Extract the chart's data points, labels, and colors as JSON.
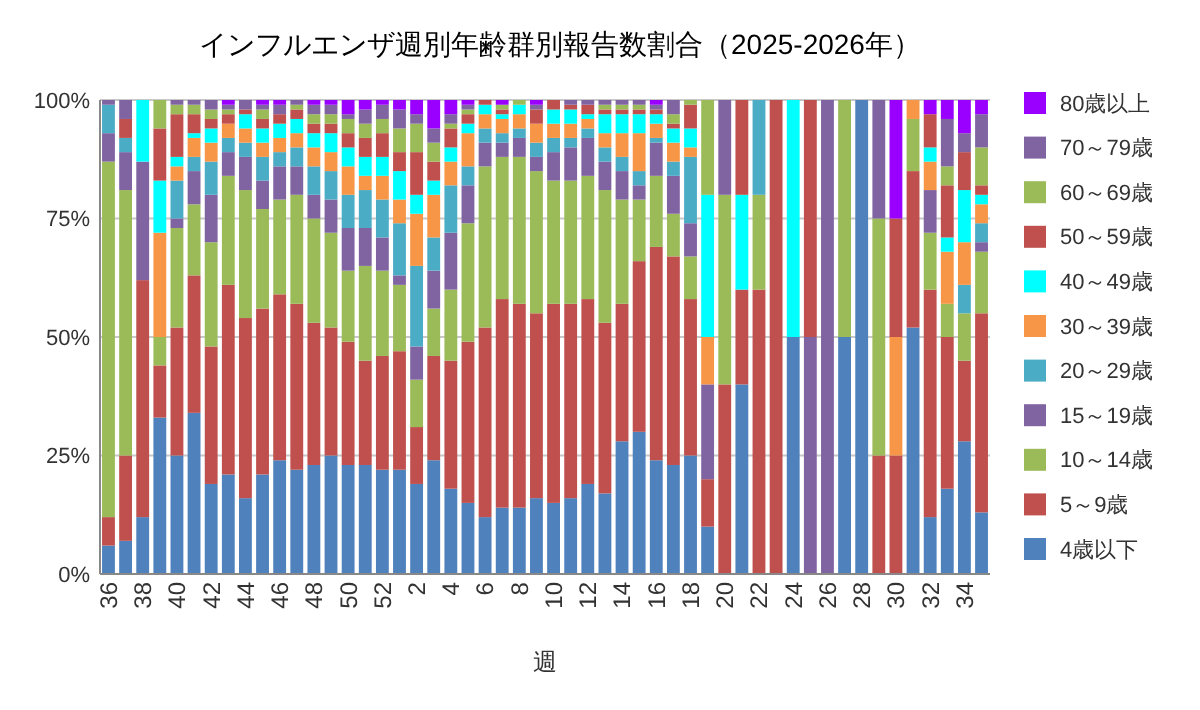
{
  "chart_data": {
    "type": "bar",
    "stacked": true,
    "title": "インフルエンザ週別年齢群別報告数割合（2025-2026年）",
    "xlabel": "週",
    "categories": [
      "36",
      null,
      "38",
      null,
      "40",
      null,
      "42",
      null,
      "44",
      null,
      "46",
      null,
      "48",
      null,
      "50",
      null,
      "52",
      null,
      "2",
      null,
      "4",
      null,
      "6",
      null,
      "8",
      null,
      "10",
      null,
      "12",
      null,
      "14",
      null,
      "16",
      null,
      "18",
      null,
      "20",
      null,
      "22",
      null,
      "24",
      null,
      "26",
      null,
      "28",
      null,
      "30",
      null,
      "32",
      null,
      "34",
      null
    ],
    "ylim": [
      0,
      100
    ],
    "yticks": [
      {
        "value": 0,
        "label": "0%"
      },
      {
        "value": 25,
        "label": "25%"
      },
      {
        "value": 50,
        "label": "50%"
      },
      {
        "value": 75,
        "label": "75%"
      },
      {
        "value": 100,
        "label": "100%"
      }
    ],
    "grid": "y",
    "legend": "right",
    "series": [
      {
        "name": "4歳以下",
        "color": "#4f81bd",
        "values": [
          6,
          7,
          12,
          33,
          25,
          34,
          19,
          21,
          16,
          21,
          24,
          22,
          23,
          25,
          23,
          23,
          22,
          22,
          19,
          24,
          18,
          15,
          12,
          14,
          14,
          16,
          15,
          16,
          19,
          17,
          28,
          30,
          24,
          23,
          25,
          10,
          0,
          40,
          0,
          0,
          50,
          0,
          0,
          50,
          100,
          0,
          0,
          52,
          12,
          18,
          28,
          13
        ]
      },
      {
        "name": "5～9歳",
        "color": "#c0504d",
        "values": [
          6,
          18,
          50,
          11,
          27,
          29,
          29,
          40,
          38,
          35,
          35,
          35,
          30,
          27,
          26,
          22,
          24,
          25,
          12,
          22,
          27,
          34,
          40,
          44,
          43,
          39,
          42,
          41,
          39,
          36,
          29,
          36,
          45,
          44,
          33,
          10,
          40,
          20,
          60,
          100,
          0,
          0,
          0,
          0,
          0,
          25,
          25,
          33,
          48,
          32,
          17,
          42
        ]
      },
      {
        "name": "10～14歳",
        "color": "#9bbb59",
        "values": [
          75,
          56,
          0,
          6,
          21,
          15,
          22,
          23,
          27,
          21,
          20,
          23,
          22,
          20,
          15,
          20,
          18,
          14,
          10,
          10,
          15,
          25,
          34,
          30,
          31,
          30,
          26,
          26,
          26,
          28,
          22,
          13,
          15,
          9,
          9,
          0,
          40,
          0,
          20,
          0,
          0,
          0,
          0,
          50,
          0,
          50,
          0,
          11,
          12,
          7,
          10,
          13
        ]
      },
      {
        "name": "15～19歳",
        "color": "#8064a2",
        "values": [
          6,
          8,
          25,
          0,
          2,
          7,
          10,
          5,
          7,
          6,
          7,
          6,
          5,
          7,
          9,
          8,
          7,
          2,
          7,
          8,
          12,
          8,
          5,
          3,
          4,
          3,
          6,
          7,
          8,
          6,
          6,
          3,
          7,
          8,
          7,
          20,
          20,
          0,
          0,
          0,
          0,
          50,
          100,
          0,
          0,
          25,
          0,
          0,
          9,
          0,
          0,
          2
        ]
      },
      {
        "name": "20～29歳",
        "color": "#4bacc6",
        "values": [
          6,
          3,
          0,
          0,
          8,
          3,
          7,
          3,
          3,
          5,
          3,
          4,
          6,
          6,
          7,
          8,
          8,
          11,
          17,
          7,
          10,
          4,
          3,
          2,
          2,
          3,
          3,
          2,
          2,
          3,
          3,
          3,
          1,
          3,
          14,
          0,
          0,
          0,
          20,
          0,
          0,
          0,
          0,
          0,
          0,
          0,
          0,
          0,
          0,
          0,
          6,
          4
        ]
      },
      {
        "name": "30～39歳",
        "color": "#f79646",
        "values": [
          0,
          0,
          0,
          22,
          3,
          4,
          4,
          3,
          3,
          3,
          3,
          3,
          4,
          4,
          6,
          3,
          5,
          5,
          11,
          9,
          5,
          7,
          3,
          3,
          3,
          4,
          3,
          3,
          2,
          3,
          5,
          8,
          3,
          4,
          2,
          10,
          0,
          0,
          0,
          0,
          0,
          0,
          0,
          0,
          0,
          0,
          25,
          4,
          6,
          11,
          9,
          4
        ]
      },
      {
        "name": "40～49歳",
        "color": "#00ffff",
        "values": [
          0,
          0,
          13,
          11,
          2,
          1,
          3,
          0,
          3,
          3,
          3,
          3,
          3,
          4,
          4,
          4,
          4,
          6,
          4,
          3,
          3,
          2,
          2,
          1,
          2,
          0,
          3,
          3,
          1,
          4,
          4,
          4,
          2,
          3,
          4,
          30,
          0,
          20,
          0,
          0,
          50,
          0,
          0,
          0,
          0,
          0,
          0,
          0,
          3,
          3,
          11,
          2
        ]
      },
      {
        "name": "50～59歳",
        "color": "#c0504d",
        "values": [
          0,
          4,
          0,
          11,
          9,
          4,
          2,
          2,
          1,
          2,
          2,
          2,
          2,
          2,
          3,
          4,
          5,
          4,
          9,
          4,
          4,
          2,
          1,
          1,
          0,
          3,
          2,
          1,
          2,
          1,
          1,
          1,
          1,
          1,
          5,
          0,
          0,
          20,
          0,
          0,
          0,
          50,
          0,
          0,
          0,
          0,
          25,
          0,
          7,
          11,
          8,
          2
        ]
      },
      {
        "name": "60～69歳",
        "color": "#9bbb59",
        "values": [
          0,
          0,
          0,
          6,
          2,
          2,
          2,
          1,
          0,
          2,
          0,
          1,
          2,
          2,
          3,
          3,
          3,
          5,
          6,
          4,
          1,
          1,
          0,
          1,
          1,
          0,
          0,
          0,
          0,
          1,
          1,
          1,
          0,
          2,
          1,
          20,
          0,
          0,
          0,
          0,
          0,
          0,
          0,
          0,
          0,
          0,
          0,
          0,
          0,
          4,
          0,
          8
        ]
      },
      {
        "name": "70～79歳",
        "color": "#8064a2",
        "values": [
          1,
          4,
          0,
          0,
          1,
          1,
          2,
          1,
          2,
          1,
          2,
          1,
          2,
          2,
          1,
          3,
          3,
          4,
          2,
          3,
          2,
          1,
          0,
          0,
          0,
          1,
          0,
          1,
          1,
          1,
          1,
          1,
          1,
          3,
          0,
          0,
          0,
          0,
          0,
          0,
          0,
          0,
          0,
          0,
          0,
          0,
          0,
          0,
          0,
          10,
          4,
          7
        ]
      },
      {
        "name": "80歳以上",
        "color": "#9900ff",
        "values": [
          0,
          0,
          0,
          0,
          0,
          0,
          0,
          1,
          0,
          1,
          1,
          0,
          1,
          1,
          3,
          2,
          1,
          2,
          3,
          6,
          3,
          1,
          0,
          1,
          0,
          1,
          0,
          0,
          0,
          0,
          0,
          0,
          1,
          0,
          0,
          0,
          0,
          0,
          0,
          0,
          0,
          0,
          0,
          0,
          0,
          0,
          25,
          0,
          3,
          4,
          7,
          3
        ]
      }
    ]
  }
}
